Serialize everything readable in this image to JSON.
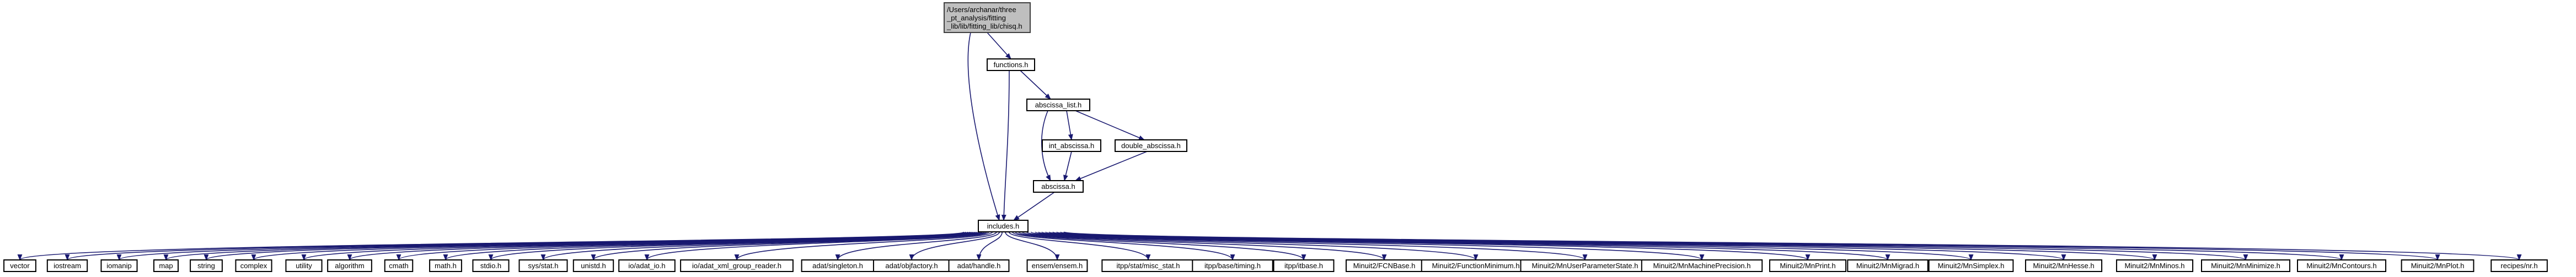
{
  "root": {
    "lines": [
      "/Users/archanar/three",
      "_pt_analysis/fitting",
      "_lib/lib/fitting_lib/chisq.h"
    ]
  },
  "nodes": {
    "functions": "functions.h",
    "abscissa_list": "abscissa_list.h",
    "int_abscissa": "int_abscissa.h",
    "double_abscissa": "double_abscissa.h",
    "abscissa": "abscissa.h",
    "includes": "includes.h"
  },
  "leaves": [
    "vector",
    "iostream",
    "iomanip",
    "map",
    "string",
    "complex",
    "utility",
    "algorithm",
    "cmath",
    "math.h",
    "stdio.h",
    "sys/stat.h",
    "unistd.h",
    "io/adat_io.h",
    "io/adat_xml_group_reader.h",
    "adat/singleton.h",
    "adat/objfactory.h",
    "adat/handle.h",
    "ensem/ensem.h",
    "itpp/stat/misc_stat.h",
    "itpp/base/timing.h",
    "itpp/itbase.h",
    "Minuit2/FCNBase.h",
    "Minuit2/FunctionMinimum.h",
    "Minuit2/MnUserParameterState.h",
    "Minuit2/MnMachinePrecision.h",
    "Minuit2/MnPrint.h",
    "Minuit2/MnMigrad.h",
    "Minuit2/MnSimplex.h",
    "Minuit2/MnHesse.h",
    "Minuit2/MnMinos.h",
    "Minuit2/MnMinimize.h",
    "Minuit2/MnContours.h",
    "Minuit2/MnPlot.h",
    "recipes/nr.h"
  ],
  "colors": {
    "edge": "#191970",
    "root_fill": "#bfbfbf",
    "node_fill": "#ffffff"
  }
}
